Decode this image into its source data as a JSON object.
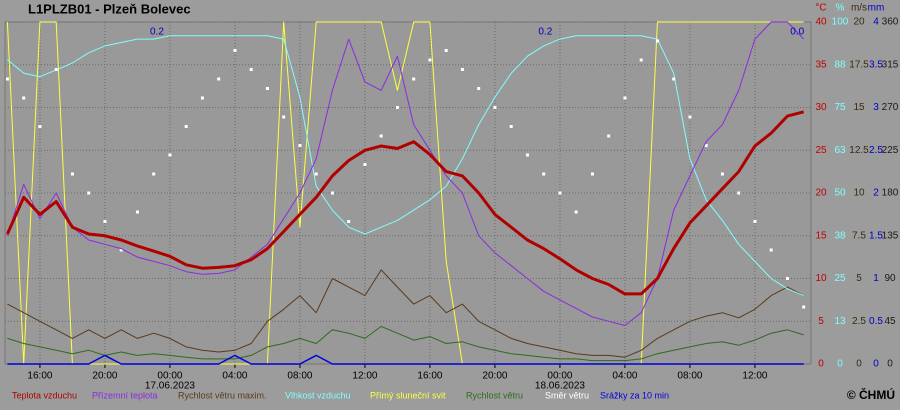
{
  "chart_data": {
    "type": "line",
    "title": "L1PLZB01 - Plzeň Bolevec",
    "copyright": "© ČHMÚ",
    "x": [
      -10,
      -9,
      -8,
      -7,
      -6,
      -5,
      -4,
      -3,
      -2,
      -1,
      0,
      1,
      2,
      3,
      4,
      5,
      6,
      7,
      8,
      9,
      10,
      11,
      12,
      13,
      14,
      15,
      16,
      17,
      18,
      19,
      20,
      21,
      22,
      23,
      24,
      25,
      26,
      27,
      28,
      29,
      30,
      31,
      32,
      33,
      34,
      35,
      36,
      37,
      38,
      39
    ],
    "xlim": [
      -10.15,
      39.45
    ],
    "xticks": [
      {
        "value": -8,
        "label": "16:00"
      },
      {
        "value": -4,
        "label": "20:00"
      },
      {
        "value": 0,
        "label": "00:00"
      },
      {
        "value": 4,
        "label": "04:00"
      },
      {
        "value": 8,
        "label": "08:00"
      },
      {
        "value": 12,
        "label": "12:00"
      },
      {
        "value": 16,
        "label": "16:00"
      },
      {
        "value": 20,
        "label": "20:00"
      },
      {
        "value": 24,
        "label": "00:00"
      },
      {
        "value": 28,
        "label": "04:00"
      },
      {
        "value": 32,
        "label": "08:00"
      },
      {
        "value": 36,
        "label": "12:00"
      }
    ],
    "date_labels": [
      {
        "value": 0,
        "label": "17.06.2023"
      },
      {
        "value": 24,
        "label": "18.06.2023"
      }
    ],
    "grid": true,
    "y_unit": "°C",
    "ylim": [
      0,
      40
    ],
    "yticks": [
      0,
      5,
      10,
      15,
      20,
      25,
      30,
      35,
      40
    ],
    "y_color": "#c00000",
    "y2_unit": "%",
    "y2lim": [
      0,
      100
    ],
    "y2ticks": [
      0,
      {
        "value": 12.5,
        "label": "13"
      },
      25,
      {
        "value": 37.5,
        "label": "38"
      },
      50,
      {
        "value": 62.5,
        "label": "63"
      },
      75,
      {
        "value": 87.5,
        "label": "88"
      },
      100
    ],
    "y2_color": "#7fffff",
    "y3_unit": "m/s",
    "y3lim": [
      0,
      20
    ],
    "y3ticks": [
      0,
      2.5,
      5,
      7.5,
      10,
      12.5,
      15,
      17.5,
      20
    ],
    "y3_color": "#3a2a10",
    "y4_unit": "mm",
    "y4lim": [
      0,
      4
    ],
    "y4ticks": [
      0,
      0.5,
      1,
      1.5,
      2,
      2.5,
      3,
      3.5,
      4
    ],
    "y4_color": "#0000c0",
    "y5lim": [
      0,
      360
    ],
    "y5ticks": [
      0,
      45,
      90,
      135,
      180,
      225,
      270,
      315,
      360
    ],
    "y5_color": "#1a1a1a",
    "annotations": [
      {
        "text": "0.2",
        "x": -0.8
      },
      {
        "text": "0.2",
        "x": 23.1
      },
      {
        "text": "0.0",
        "x": 38.6
      }
    ],
    "series": [
      {
        "name": "Teplota vzduchu",
        "color": "#b00000",
        "axis": "y",
        "kind": "line",
        "width": 3,
        "values": [
          15.2,
          19.5,
          17.5,
          19,
          16,
          15.2,
          15,
          14.5,
          13.8,
          13.2,
          12.6,
          11.6,
          11.2,
          11.3,
          11.5,
          12.2,
          13.5,
          15.5,
          17.5,
          19.5,
          22,
          23.8,
          25,
          25.5,
          25.2,
          26,
          24.5,
          22.5,
          22,
          20,
          17.5,
          16,
          14.5,
          13.5,
          12.3,
          11,
          10,
          9.3,
          8.2,
          8.2,
          10,
          13.5,
          16.5,
          18.5,
          20.5,
          22.5,
          25.5,
          27,
          29,
          29.5
        ]
      },
      {
        "name": "Přízemní teplota",
        "color": "#8a2be2",
        "axis": "y",
        "kind": "line",
        "width": 1,
        "values": [
          15,
          21,
          17,
          20,
          16,
          14.5,
          14,
          13.5,
          12.5,
          12,
          11.5,
          10.8,
          10.5,
          10.6,
          11,
          12.5,
          14,
          17,
          20,
          24,
          32,
          38,
          33,
          32,
          36,
          28,
          25,
          22,
          20,
          15,
          13,
          11.5,
          10,
          8.5,
          7.5,
          6.5,
          5.5,
          5,
          4.5,
          6,
          10,
          18,
          22,
          26,
          28,
          32,
          38,
          40,
          40,
          38
        ]
      },
      {
        "name": "Rychlost větru maxim.",
        "color": "#5a3a1a",
        "axis": "y3",
        "kind": "line",
        "width": 1,
        "values": [
          3.5,
          3,
          2.5,
          2,
          1.5,
          2,
          1.5,
          2,
          1.5,
          1.8,
          1.5,
          1,
          0.8,
          0.7,
          0.8,
          1.2,
          2.5,
          3.2,
          4,
          3,
          5,
          4.5,
          4,
          5.5,
          4.5,
          3.5,
          4,
          3,
          3.5,
          2.5,
          2,
          1.5,
          1.2,
          1,
          0.8,
          0.6,
          0.5,
          0.5,
          0.4,
          0.8,
          1.5,
          2,
          2.5,
          2.8,
          3,
          2.7,
          3.2,
          4,
          4.5,
          4
        ]
      },
      {
        "name": "Vlhkost vzduchu",
        "color": "#7fffff",
        "axis": "y2",
        "kind": "line",
        "width": 1,
        "values": [
          89,
          85,
          84,
          86,
          88,
          91,
          93,
          94,
          95,
          95,
          96,
          96,
          96,
          96,
          96,
          96,
          96,
          95,
          78,
          52,
          45,
          40,
          38,
          40,
          42,
          45,
          48,
          52,
          60,
          70,
          78,
          85,
          90,
          93,
          95,
          96,
          96,
          96,
          96,
          96,
          95,
          85,
          60,
          48,
          42,
          35,
          30,
          25,
          22,
          20
        ]
      },
      {
        "name": "Přímý sluneční svit",
        "color": "#ffff40",
        "axis": "y2",
        "kind": "line",
        "width": 1,
        "values": [
          100,
          0,
          100,
          100,
          0,
          0,
          0,
          0,
          0,
          0,
          0,
          0,
          0,
          0,
          0,
          0,
          0,
          100,
          40,
          100,
          100,
          100,
          100,
          100,
          80,
          100,
          100,
          30,
          0,
          0,
          0,
          0,
          0,
          0,
          0,
          0,
          0,
          0,
          0,
          0,
          100,
          100,
          100,
          100,
          100,
          100,
          100,
          100,
          100,
          100
        ]
      },
      {
        "name": "Rychlost větru",
        "color": "#2e6b1e",
        "axis": "y3",
        "kind": "line",
        "width": 1,
        "values": [
          1.5,
          1.2,
          1,
          0.8,
          0.6,
          0.8,
          0.5,
          0.7,
          0.5,
          0.6,
          0.5,
          0.4,
          0.3,
          0.3,
          0.3,
          0.5,
          1,
          1.2,
          1.5,
          1.2,
          2,
          1.8,
          1.5,
          2.2,
          1.8,
          1.4,
          1.6,
          1.2,
          1.3,
          1,
          0.8,
          0.6,
          0.5,
          0.4,
          0.3,
          0.3,
          0.2,
          0.2,
          0.2,
          0.3,
          0.6,
          0.8,
          1,
          1.2,
          1.3,
          1.1,
          1.4,
          1.8,
          2,
          1.7
        ]
      },
      {
        "name": "Směr větru",
        "color": "#ffffff",
        "axis": "y5",
        "kind": "scatter",
        "values": [
          300,
          280,
          250,
          310,
          200,
          180,
          150,
          120,
          160,
          200,
          220,
          250,
          280,
          300,
          330,
          310,
          290,
          260,
          230,
          200,
          180,
          150,
          210,
          240,
          270,
          300,
          320,
          330,
          310,
          290,
          270,
          250,
          220,
          200,
          180,
          160,
          200,
          240,
          280,
          320,
          340,
          300,
          260,
          230,
          200,
          180,
          150,
          120,
          90,
          60
        ]
      },
      {
        "name": "Srážky za 10 min",
        "color": "#0000e0",
        "axis": "y4",
        "kind": "line",
        "width": 1.5,
        "values": [
          0,
          0,
          0,
          0,
          0,
          0,
          0.1,
          0,
          0,
          0,
          0,
          0,
          0,
          0,
          0.1,
          0,
          0,
          0,
          0,
          0.1,
          0,
          0,
          0,
          0,
          0,
          0,
          0,
          0,
          0,
          0,
          0,
          0,
          0,
          0,
          0,
          0,
          0,
          0,
          0,
          0,
          0,
          0,
          0,
          0,
          0,
          0,
          0,
          0,
          0,
          0
        ]
      }
    ]
  }
}
